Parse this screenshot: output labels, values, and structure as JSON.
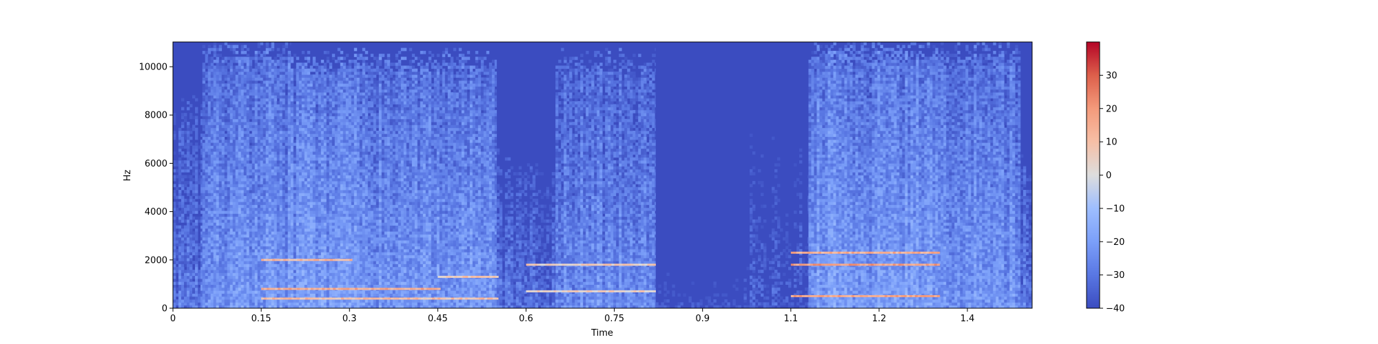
{
  "chart_data": {
    "type": "heatmap",
    "title": "",
    "xlabel": "Time",
    "ylabel": "Hz",
    "xlim": [
      0,
      1.46
    ],
    "ylim": [
      0,
      11025
    ],
    "x_ticks": [
      {
        "value": 0,
        "label": "0"
      },
      {
        "value": 0.15,
        "label": "0.15"
      },
      {
        "value": 0.3,
        "label": "0.3"
      },
      {
        "value": 0.45,
        "label": "0.45"
      },
      {
        "value": 0.6,
        "label": "0.6"
      },
      {
        "value": 0.75,
        "label": "0.75"
      },
      {
        "value": 0.9,
        "label": "0.9"
      },
      {
        "value": 1.05,
        "label": "1.1"
      },
      {
        "value": 1.2,
        "label": "1.2"
      },
      {
        "value": 1.35,
        "label": "1.4"
      }
    ],
    "y_ticks": [
      {
        "value": 0,
        "label": "0"
      },
      {
        "value": 2000,
        "label": "2000"
      },
      {
        "value": 4000,
        "label": "4000"
      },
      {
        "value": 6000,
        "label": "6000"
      },
      {
        "value": 8000,
        "label": "8000"
      },
      {
        "value": 10000,
        "label": "10000"
      }
    ],
    "colorbar": {
      "colormap": "coolwarm",
      "range": [
        -40,
        40
      ],
      "ticks": [
        {
          "value": -40,
          "label": "−40"
        },
        {
          "value": -30,
          "label": "−30"
        },
        {
          "value": -20,
          "label": "−20"
        },
        {
          "value": -10,
          "label": "−10"
        },
        {
          "value": 0,
          "label": "0"
        },
        {
          "value": 10,
          "label": "10"
        },
        {
          "value": 20,
          "label": "20"
        },
        {
          "value": 30,
          "label": "30"
        }
      ]
    },
    "colors": {
      "background": "#3b4cc0",
      "low": "#3b4cc0",
      "mid": "#dddddd",
      "high": "#b40426"
    },
    "segments": [
      {
        "t": [
          0.0,
          0.05
        ],
        "level": -31,
        "fmax": 8500
      },
      {
        "t": [
          0.05,
          0.2
        ],
        "level": -22,
        "fmax": 10600
      },
      {
        "t": [
          0.2,
          0.55
        ],
        "level": -21,
        "fmax": 10200
      },
      {
        "t": [
          0.55,
          0.65
        ],
        "level": -32,
        "fmax": 6000
      },
      {
        "t": [
          0.65,
          0.82
        ],
        "level": -25,
        "fmax": 10200
      },
      {
        "t": [
          0.82,
          0.98
        ],
        "level": -39,
        "fmax": 2000
      },
      {
        "t": [
          0.98,
          1.08
        ],
        "level": -38,
        "fmax": 8000
      },
      {
        "t": [
          1.08,
          1.3
        ],
        "level": -20,
        "fmax": 10600
      },
      {
        "t": [
          1.3,
          1.44
        ],
        "level": -22,
        "fmax": 10500
      },
      {
        "t": [
          1.44,
          1.46
        ],
        "level": -30,
        "fmax": 6000
      }
    ],
    "hot_bands": [
      {
        "t": [
          0.15,
          0.3
        ],
        "f": 2000,
        "level": 12
      },
      {
        "t": [
          0.15,
          0.45
        ],
        "f": 800,
        "level": 15
      },
      {
        "t": [
          0.15,
          0.55
        ],
        "f": 400,
        "level": 10
      },
      {
        "t": [
          0.45,
          0.55
        ],
        "f": 1300,
        "level": 8
      },
      {
        "t": [
          0.6,
          0.82
        ],
        "f": 1800,
        "level": 6
      },
      {
        "t": [
          0.6,
          0.82
        ],
        "f": 700,
        "level": 4
      },
      {
        "t": [
          1.05,
          1.3
        ],
        "f": 2300,
        "level": 14
      },
      {
        "t": [
          1.05,
          1.3
        ],
        "f": 1800,
        "level": 18
      },
      {
        "t": [
          1.05,
          1.3
        ],
        "f": 500,
        "level": 16
      }
    ]
  }
}
